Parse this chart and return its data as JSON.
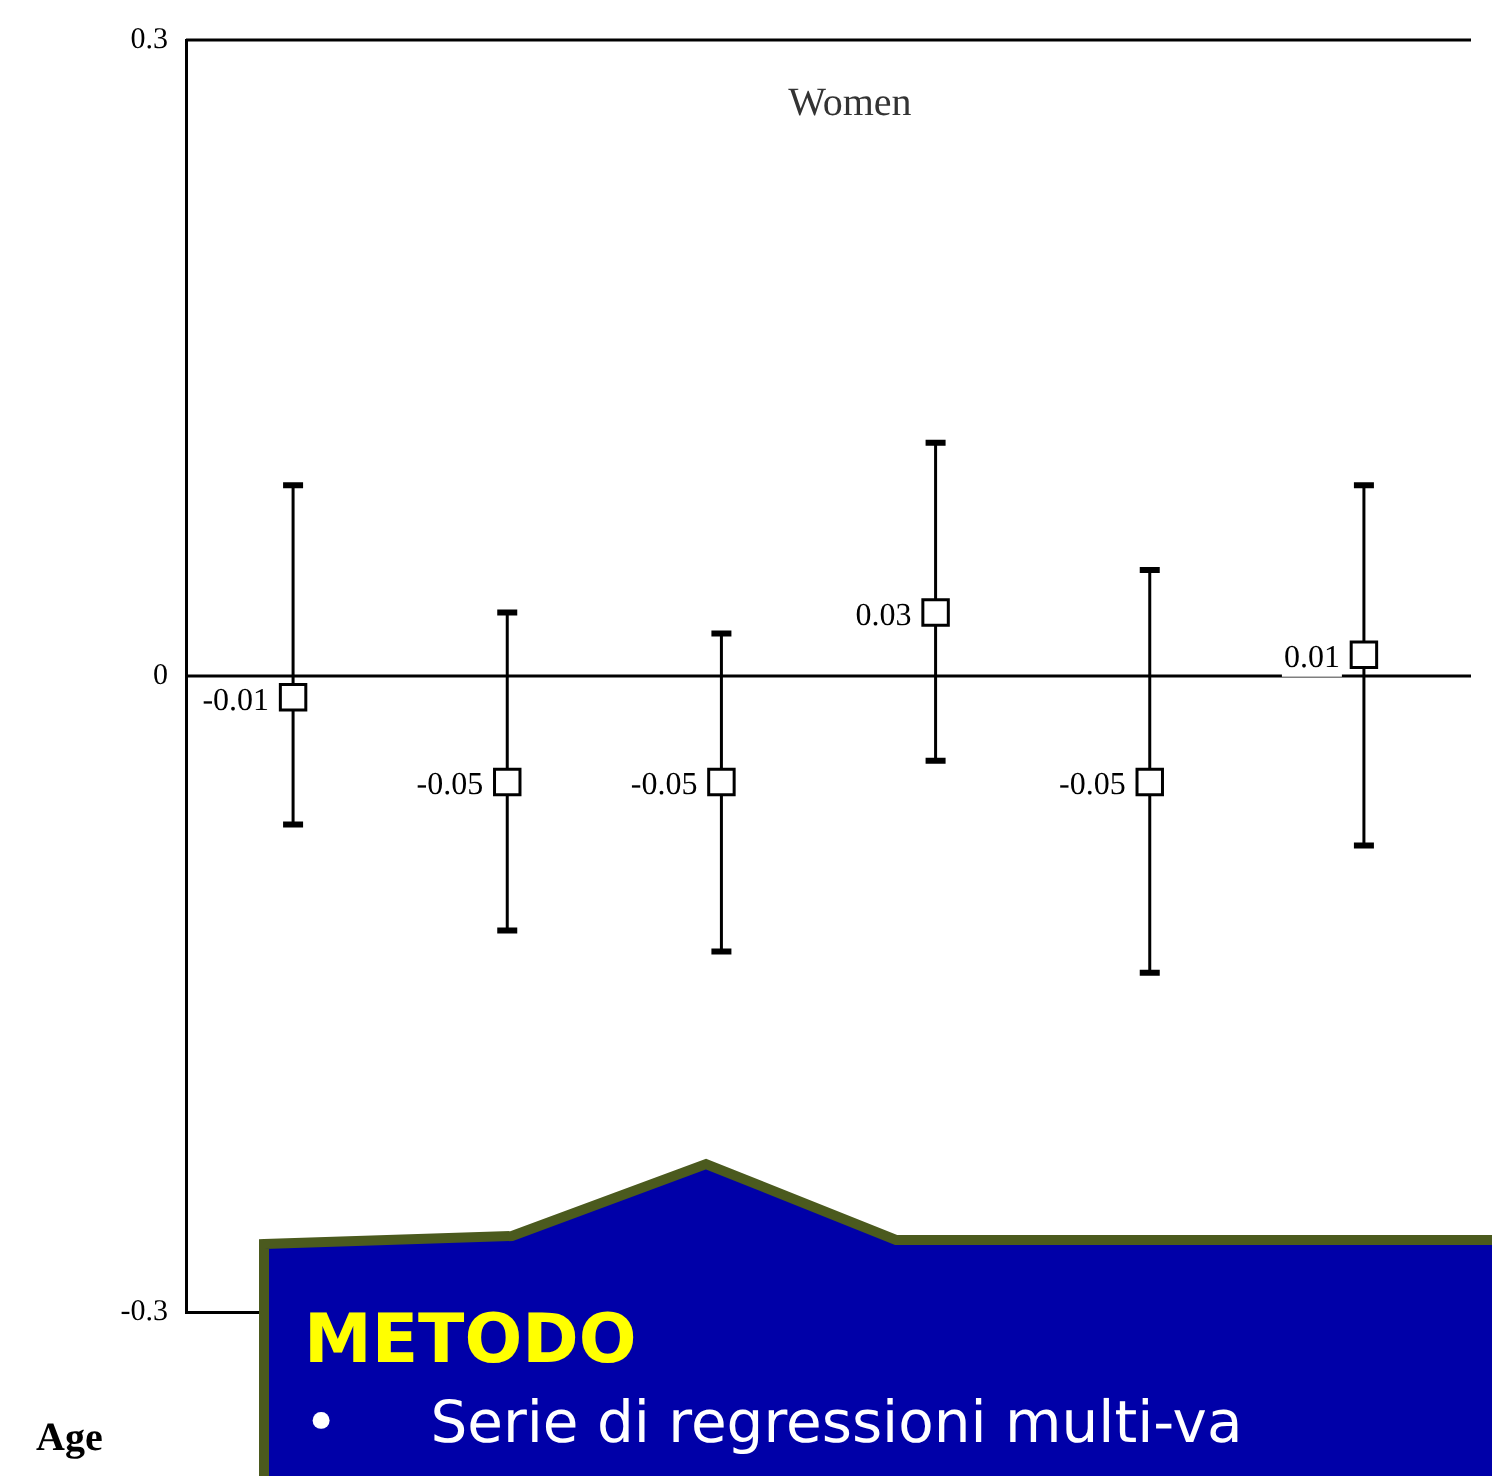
{
  "chart_data": {
    "type": "scatter",
    "title": "Women",
    "xlabel": "Age",
    "categories": [
      null,
      null,
      null,
      null,
      null,
      null
    ],
    "values": [
      -0.01,
      -0.05,
      -0.05,
      0.03,
      -0.05,
      0.01
    ],
    "errors": [
      [
        0.09,
        -0.07
      ],
      [
        0.03,
        -0.12
      ],
      [
        0.02,
        -0.13
      ],
      [
        0.11,
        -0.04
      ],
      [
        0.05,
        -0.14
      ],
      [
        0.09,
        -0.08
      ]
    ],
    "data_labels": true,
    "marker": "square",
    "color": "#000000",
    "ylim": [
      -0.3,
      0.3
    ],
    "yticks": [
      -0.3,
      0,
      0.3
    ],
    "grid": false,
    "legend": false,
    "ref_lines": [
      {
        "axis": "y",
        "value": 0
      }
    ],
    "annotations": [
      "METODO",
      "•     Serie di regressioni multi-va"
    ]
  }
}
